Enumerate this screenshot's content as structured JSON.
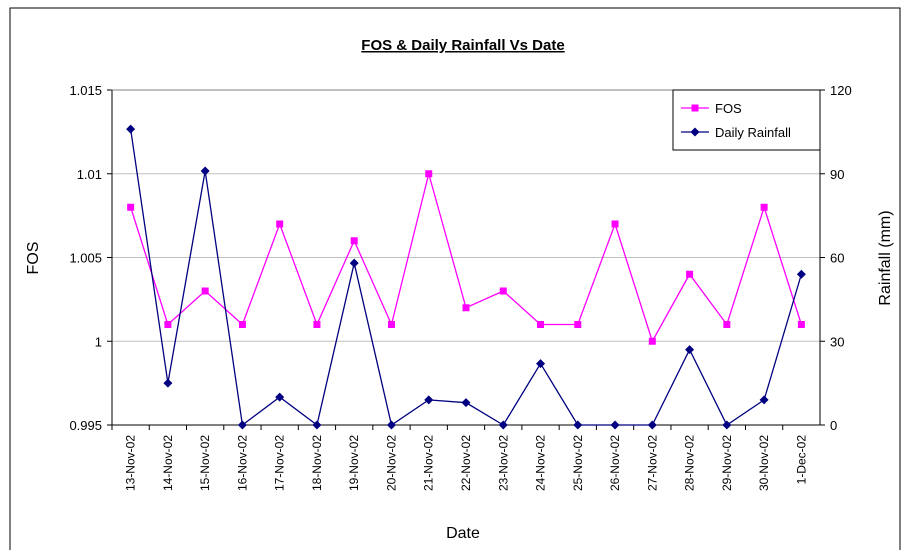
{
  "chart_data": {
    "type": "line",
    "title": "FOS & Daily Rainfall Vs Date",
    "x_label": "Date",
    "y_label": "FOS",
    "y2_label": "Rainfall (mm)",
    "categories": [
      "13-Nov-02",
      "14-Nov-02",
      "15-Nov-02",
      "16-Nov-02",
      "17-Nov-02",
      "18-Nov-02",
      "19-Nov-02",
      "20-Nov-02",
      "21-Nov-02",
      "22-Nov-02",
      "23-Nov-02",
      "24-Nov-02",
      "25-Nov-02",
      "26-Nov-02",
      "27-Nov-02",
      "28-Nov-02",
      "29-Nov-02",
      "30-Nov-02",
      "1-Dec-02"
    ],
    "series": [
      {
        "name": "FOS",
        "color": "#ff00ff",
        "marker": "square",
        "axis": "y",
        "values": [
          1.008,
          1.001,
          1.003,
          1.001,
          1.007,
          1.001,
          1.006,
          1.001,
          1.01,
          1.002,
          1.003,
          1.001,
          1.001,
          1.007,
          1.0,
          1.004,
          1.001,
          1.008,
          1.001
        ]
      },
      {
        "name": "Daily Rainfall",
        "color": "#000080",
        "marker": "diamond",
        "axis": "y2",
        "values": [
          106,
          15,
          91,
          0,
          10,
          0,
          58,
          0,
          9,
          8,
          0,
          22,
          0,
          0,
          0,
          27,
          0,
          9,
          54
        ]
      }
    ],
    "ylim": [
      0.995,
      1.015
    ],
    "yticks": [
      0.995,
      1,
      1.005,
      1.01,
      1.015
    ],
    "y2lim": [
      0,
      120
    ],
    "y2ticks": [
      0,
      30,
      60,
      90,
      120
    ],
    "grid": true,
    "legend": "upper right"
  }
}
